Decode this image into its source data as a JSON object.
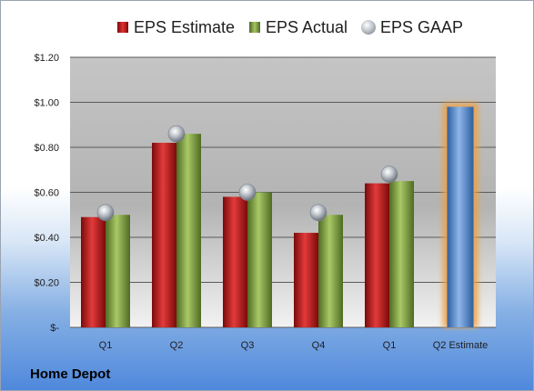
{
  "chart_data": {
    "type": "bar",
    "categories": [
      "Q1",
      "Q2",
      "Q3",
      "Q4",
      "Q1",
      "Q2 Estimate"
    ],
    "series": [
      {
        "name": "EPS Estimate",
        "values": [
          0.49,
          0.82,
          0.58,
          0.42,
          0.64,
          null
        ],
        "color": "#d42a2a"
      },
      {
        "name": "EPS Actual",
        "values": [
          0.5,
          0.86,
          0.6,
          0.5,
          0.65,
          null
        ],
        "color": "#8fb04a"
      },
      {
        "name": "EPS GAAP",
        "values": [
          0.51,
          0.86,
          0.6,
          0.51,
          0.68,
          null
        ],
        "color": "#a7adb5"
      },
      {
        "name": "Q2 Estimate",
        "values": [
          null,
          null,
          null,
          null,
          null,
          0.98
        ],
        "color": "#5b8fd4"
      }
    ],
    "yticks": [
      "$1.20",
      "$1.00",
      "$0.80",
      "$0.60",
      "$0.40",
      "$0.20",
      "$-"
    ],
    "ylim": [
      0,
      1.2
    ],
    "grid": true,
    "legend_position": "top",
    "company": "Home Depot"
  }
}
